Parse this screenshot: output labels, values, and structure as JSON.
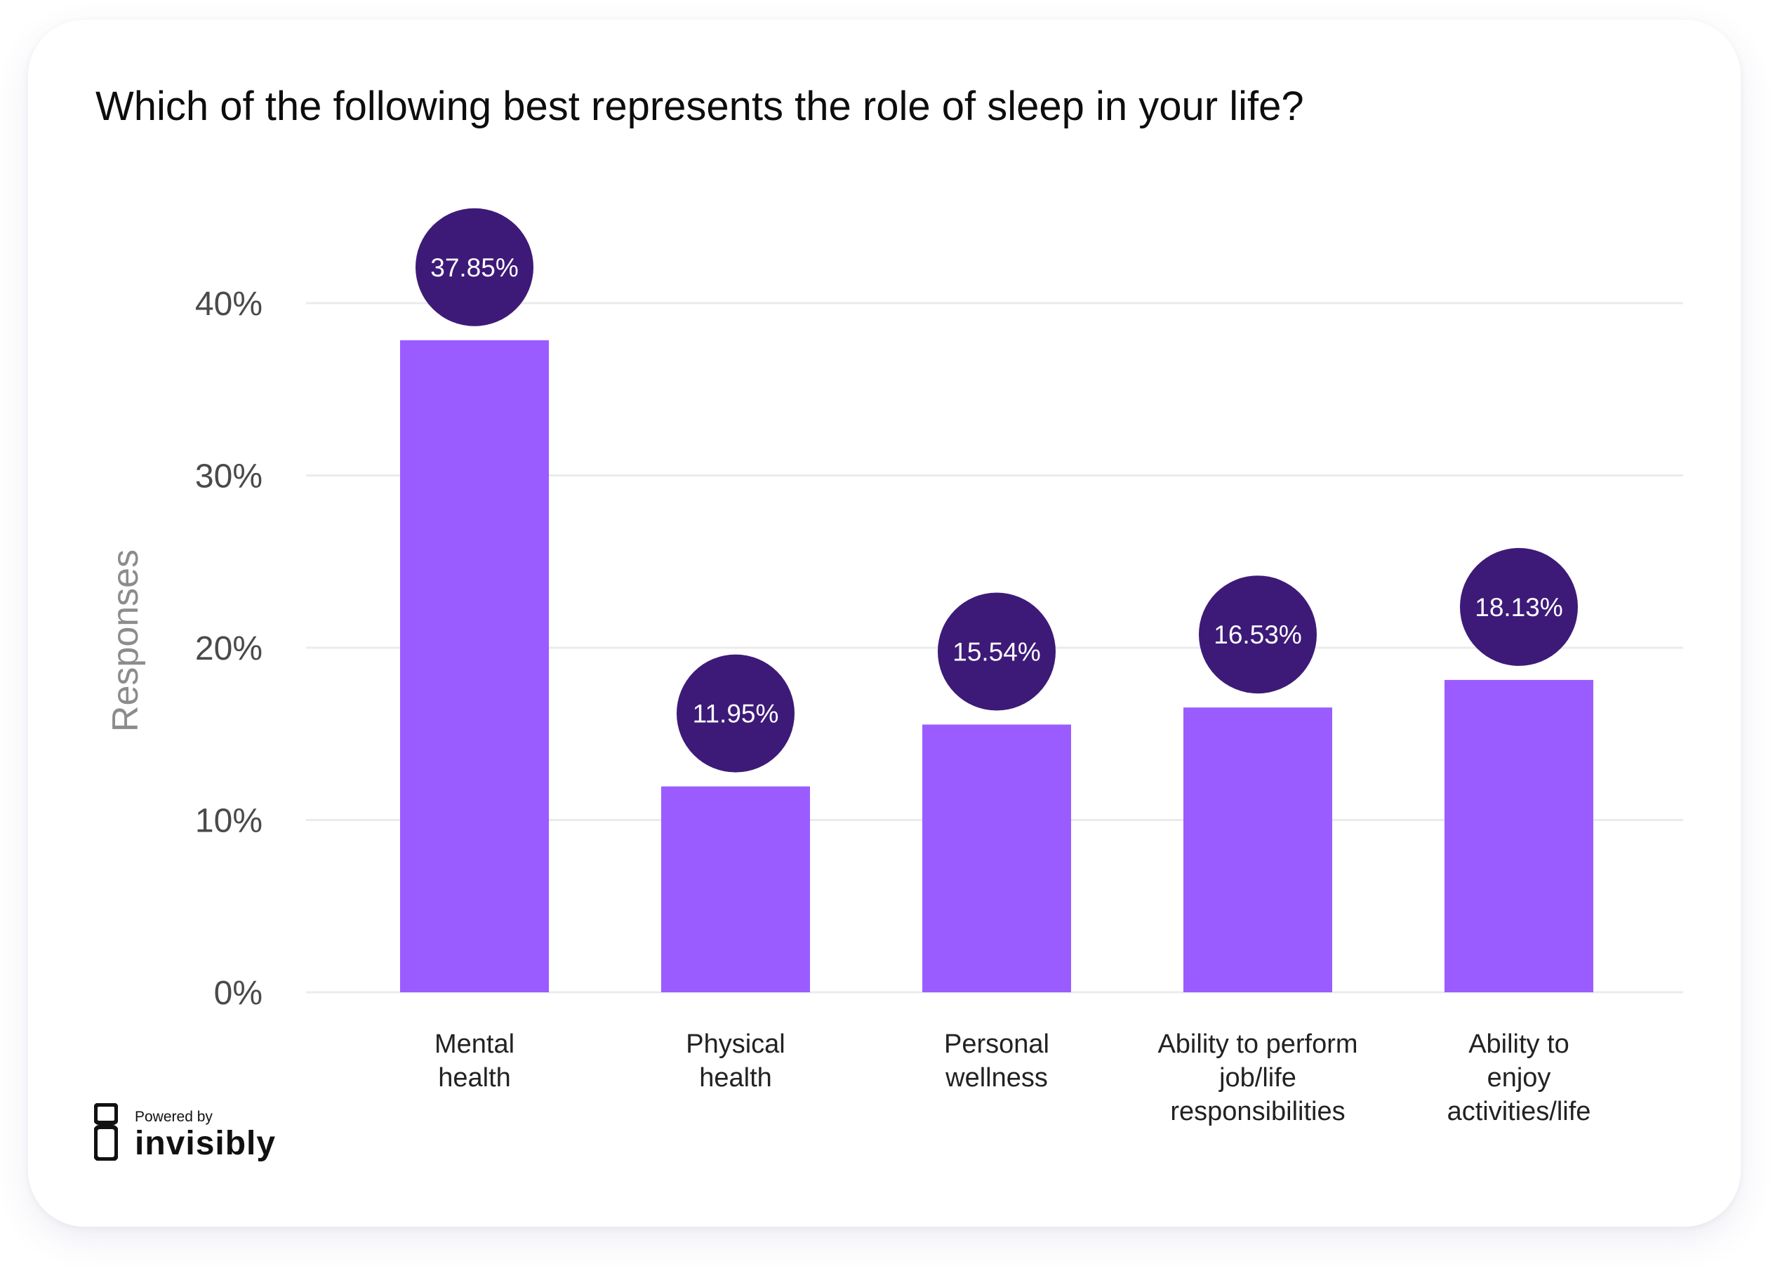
{
  "chart_data": {
    "type": "bar",
    "title": "Which of the following best represents the role of sleep in your life?",
    "ylabel": "Responses",
    "xlabel": "",
    "ylim": [
      0,
      40
    ],
    "yticks": [
      {
        "value": 0,
        "label": "0%"
      },
      {
        "value": 10,
        "label": "10%"
      },
      {
        "value": 20,
        "label": "20%"
      },
      {
        "value": 30,
        "label": "30%"
      },
      {
        "value": 40,
        "label": "40%"
      }
    ],
    "categories": [
      [
        "Mental",
        "health"
      ],
      [
        "Physical",
        "health"
      ],
      [
        "Personal",
        "wellness"
      ],
      [
        "Ability to perform",
        "job/life",
        "responsibilities"
      ],
      [
        "Ability to",
        "enjoy",
        "activities/life"
      ]
    ],
    "values": [
      37.85,
      11.95,
      15.54,
      16.53,
      18.13
    ],
    "data_labels": [
      "37.85%",
      "11.95%",
      "15.54%",
      "16.53%",
      "18.13%"
    ],
    "grid": true,
    "legend": "none",
    "colors": {
      "bar": "#9B5CFF",
      "bubble": "#3D1A78",
      "bubble_text": "#FFFFFF",
      "grid": "#EBEBEB",
      "tick_text": "#4A4A4A",
      "axis_title": "#8C8C8C",
      "category_text": "#222222"
    }
  },
  "branding": {
    "powered_by": "Powered by",
    "name": "invisibly"
  }
}
